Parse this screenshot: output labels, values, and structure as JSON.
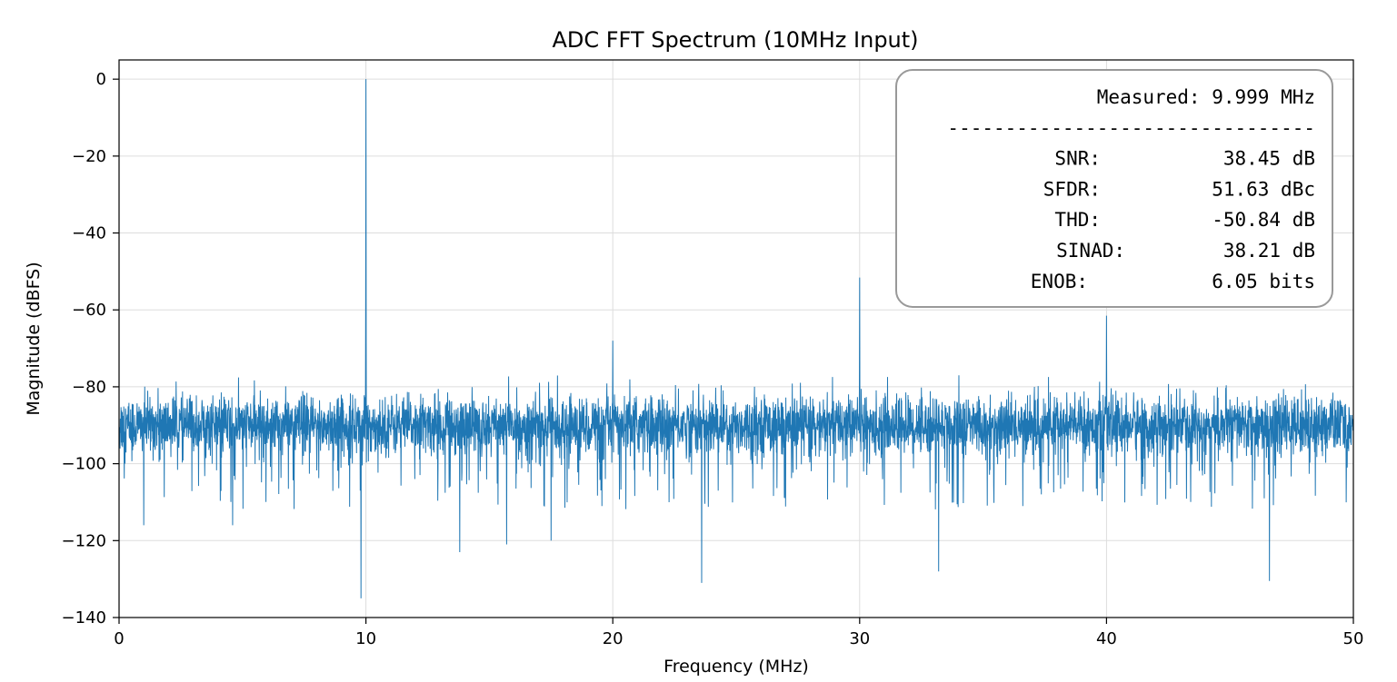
{
  "chart_data": {
    "type": "line",
    "title": "ADC FFT Spectrum (10MHz Input)",
    "xlabel": "Frequency (MHz)",
    "ylabel": "Magnitude (dBFS)",
    "xlim": [
      0,
      50
    ],
    "ylim": [
      -140,
      5
    ],
    "xticks": [
      0,
      10,
      20,
      30,
      40,
      50
    ],
    "yticks": [
      0,
      -20,
      -40,
      -60,
      -80,
      -100,
      -120,
      -140
    ],
    "xtick_labels": [
      "0",
      "10",
      "20",
      "30",
      "40",
      "50"
    ],
    "ytick_labels": [
      "0",
      "−20",
      "−40",
      "−60",
      "−80",
      "−100",
      "−120",
      "−140"
    ],
    "grid": true,
    "line_color": "#1f77b4",
    "noise_floor": {
      "mean": -90,
      "typical_range": [
        -100,
        -80
      ]
    },
    "peaks": [
      {
        "x": 10,
        "y": 0
      },
      {
        "x": 20,
        "y": -68
      },
      {
        "x": 30,
        "y": -51.6
      },
      {
        "x": 40,
        "y": -61.5
      }
    ],
    "dips": [
      {
        "x": 9.8,
        "y": -135
      },
      {
        "x": 23.6,
        "y": -131
      },
      {
        "x": 46.6,
        "y": -130.5
      },
      {
        "x": 33.2,
        "y": -128
      },
      {
        "x": 13.8,
        "y": -123
      },
      {
        "x": 17.5,
        "y": -120
      },
      {
        "x": 15.7,
        "y": -121
      },
      {
        "x": 1.0,
        "y": -116
      },
      {
        "x": 4.6,
        "y": -116
      }
    ],
    "annotation": {
      "lines": [
        {
          "label": "Measured:",
          "value": "9.999 MHz"
        },
        {
          "separator": "--------------------------------"
        },
        {
          "label": "SNR:",
          "value": "38.45 dB"
        },
        {
          "label": "SFDR:",
          "value": "51.63 dBc"
        },
        {
          "label": "THD:",
          "value": "-50.84 dB"
        },
        {
          "label": "SINAD:",
          "value": "38.21 dB"
        },
        {
          "label": "ENOB:",
          "value": "6.05 bits"
        }
      ]
    }
  }
}
